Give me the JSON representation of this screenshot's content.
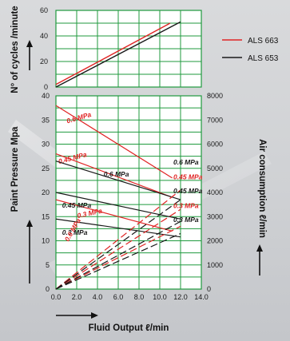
{
  "chart_data": [
    {
      "type": "line",
      "name": "cycles",
      "ylabel": "N° of cycles /minute",
      "ylim": [
        0,
        60
      ],
      "xlim": [
        0,
        14
      ],
      "y_ticks": [
        "0",
        "20",
        "40",
        "60"
      ],
      "legend_position": "right",
      "series": [
        {
          "name": "ALS 663",
          "color": "#e02424",
          "points": [
            [
              0,
              2
            ],
            [
              11,
              50
            ]
          ]
        },
        {
          "name": "ALS 653",
          "color": "#1a1a1a",
          "points": [
            [
              0,
              0
            ],
            [
              12,
              51
            ]
          ]
        }
      ]
    },
    {
      "type": "line",
      "name": "pressure-air",
      "xlabel": "Fluid Output ℓ/min",
      "ylabel": "Paint Pressure Mpa",
      "y2label": "Air consumption ℓ/min",
      "xlim": [
        0,
        14
      ],
      "ylim": [
        0,
        40
      ],
      "y2lim": [
        0,
        8000
      ],
      "x_ticks": [
        "0.0",
        "2.0",
        "4.0",
        "6.0",
        "8.0",
        "10.0",
        "12.0",
        "14.0"
      ],
      "y_ticks": [
        "0",
        "5",
        "10",
        "15",
        "20",
        "25",
        "30",
        "35",
        "40"
      ],
      "y2_ticks": [
        "0",
        "1000",
        "2000",
        "3000",
        "4000",
        "5000",
        "6000",
        "7000",
        "8000"
      ],
      "pressure_curves": [
        {
          "label": "0.6 MPa",
          "model": "ALS 663",
          "color": "#e02424",
          "points": [
            [
              0,
              38
            ],
            [
              11.2,
              23
            ]
          ],
          "label_at": [
            1.1,
            34.3
          ],
          "label_angle": -16
        },
        {
          "label": "0.45 MPa",
          "model": "ALS 663",
          "color": "#e02424",
          "points": [
            [
              0,
              28
            ],
            [
              11.2,
              19
            ]
          ],
          "label_at": [
            0.3,
            25.9
          ],
          "label_angle": -15
        },
        {
          "label": "0.3 MPa",
          "model": "ALS 663",
          "color": "#e02424",
          "points": [
            [
              0,
              18.5
            ],
            [
              11.2,
              12
            ]
          ],
          "label_at": [
            2.1,
            14.7
          ],
          "label_angle": -12
        },
        {
          "label": "0.6 MPa",
          "model": "ALS 653",
          "color": "#1a1a1a",
          "points": [
            [
              0,
              26.5
            ],
            [
              12,
              18.5
            ]
          ],
          "label_at": [
            4.6,
            23.3
          ],
          "label_angle": 0
        },
        {
          "label": "0.45 MPa",
          "model": "ALS 653",
          "color": "#1a1a1a",
          "points": [
            [
              0,
              20
            ],
            [
              12,
              14.5
            ]
          ],
          "label_at": [
            0.6,
            16.9
          ],
          "label_angle": 0
        },
        {
          "label": "0.3 MPa",
          "model": "ALS 653",
          "color": "#1a1a1a",
          "points": [
            [
              0,
              14.5
            ],
            [
              12,
              10.8
            ]
          ],
          "label_at": [
            0.6,
            11.2
          ],
          "label_angle": 0
        }
      ],
      "air_curves": [
        {
          "label": "0.6 MPa",
          "model": "ALS 663",
          "color": "#e02424",
          "points": [
            [
              0,
              0
            ],
            [
              12,
              4100
            ]
          ],
          "label_at": [
            1.2,
            1950
          ],
          "label_angle": -60
        },
        {
          "label": "0.45 MPa",
          "model": "ALS 663",
          "color": "#e02424",
          "points": [
            [
              0,
              0
            ],
            [
              12,
              3300
            ]
          ]
        },
        {
          "label": "0.3 MPa",
          "model": "ALS 663",
          "color": "#e02424",
          "points": [
            [
              0,
              0
            ],
            [
              12,
              2600
            ]
          ]
        },
        {
          "label": "0.6 MPa",
          "model": "ALS 653",
          "color": "#1a1a1a",
          "points": [
            [
              0,
              0
            ],
            [
              12,
              3700
            ]
          ]
        },
        {
          "label": "0.45 MPa",
          "model": "ALS 653",
          "color": "#1a1a1a",
          "points": [
            [
              0,
              0
            ],
            [
              12,
              2800
            ]
          ]
        },
        {
          "label": "0.3 MPa",
          "model": "ALS 653",
          "color": "#1a1a1a",
          "points": [
            [
              0,
              0
            ],
            [
              12,
              2300
            ]
          ]
        }
      ],
      "right_labels": [
        {
          "text": "0.6 MPa",
          "color": "#1a1a1a",
          "y": 26.3
        },
        {
          "text": "0.45 MPa",
          "color": "#e02424",
          "y": 23.2
        },
        {
          "text": "0.45 MPa",
          "color": "#1a1a1a",
          "y": 20.3
        },
        {
          "text": "0.3 MPa",
          "color": "#e02424",
          "y": 17.3
        },
        {
          "text": "0.3 MPa",
          "color": "#1a1a1a",
          "y": 14.4
        }
      ]
    }
  ],
  "colors": {
    "grid": "#1f9a3e",
    "panel": "#ffffff",
    "red": "#e02424",
    "black": "#1a1a1a"
  }
}
